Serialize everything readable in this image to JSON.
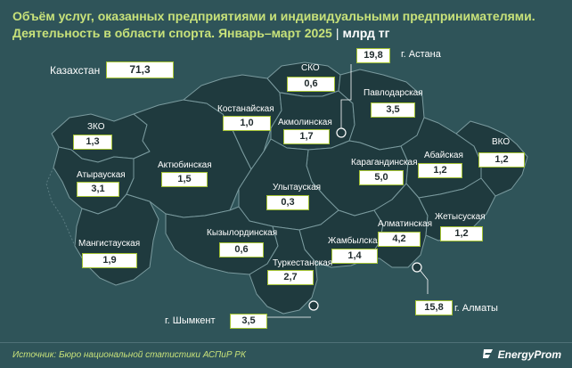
{
  "title": {
    "line1": "Объём услуг, оказанных предприятиями и индивидуальными предпринимателями.",
    "line2": "Деятельность в области спорта. Январь–март 2025",
    "separator": "|",
    "unit": "млрд тг"
  },
  "total": {
    "name": "Казахстан",
    "value": "71,3"
  },
  "regions": [
    {
      "name": "ЗКО",
      "value": "1,3"
    },
    {
      "name": "Атырауская",
      "value": "3,1"
    },
    {
      "name": "Мангистауская",
      "value": "1,9"
    },
    {
      "name": "Актюбинская",
      "value": "1,5"
    },
    {
      "name": "Костанайская",
      "value": "1,0"
    },
    {
      "name": "СКО",
      "value": "0,6"
    },
    {
      "name": "Акмолинская",
      "value": "1,7"
    },
    {
      "name": "Павлодарская",
      "value": "3,5"
    },
    {
      "name": "Карагандинская",
      "value": "5,0"
    },
    {
      "name": "Абайская",
      "value": "1,2"
    },
    {
      "name": "ВКО",
      "value": "1,2"
    },
    {
      "name": "Улытауская",
      "value": "0,3"
    },
    {
      "name": "Кызылординская",
      "value": "0,6"
    },
    {
      "name": "Жамбылская",
      "value": "1,4"
    },
    {
      "name": "Алматинская",
      "value": "4,2"
    },
    {
      "name": "Жетысуская",
      "value": "1,2"
    },
    {
      "name": "Туркестанская",
      "value": "2,7"
    }
  ],
  "cities": [
    {
      "name": "г. Астана",
      "value": "19,8"
    },
    {
      "name": "г. Шымкент",
      "value": "3,5"
    },
    {
      "name": "г. Алматы",
      "value": "15,8"
    }
  ],
  "source": "Источник: Бюро национальной статистики АСПиР РК",
  "brand": "EnergyProm",
  "colors": {
    "background": "#2f5459",
    "region_fill": "#1f3a3e",
    "region_border": "#7a9a9e",
    "accent": "#a4c233",
    "title": "#c8e27a"
  }
}
